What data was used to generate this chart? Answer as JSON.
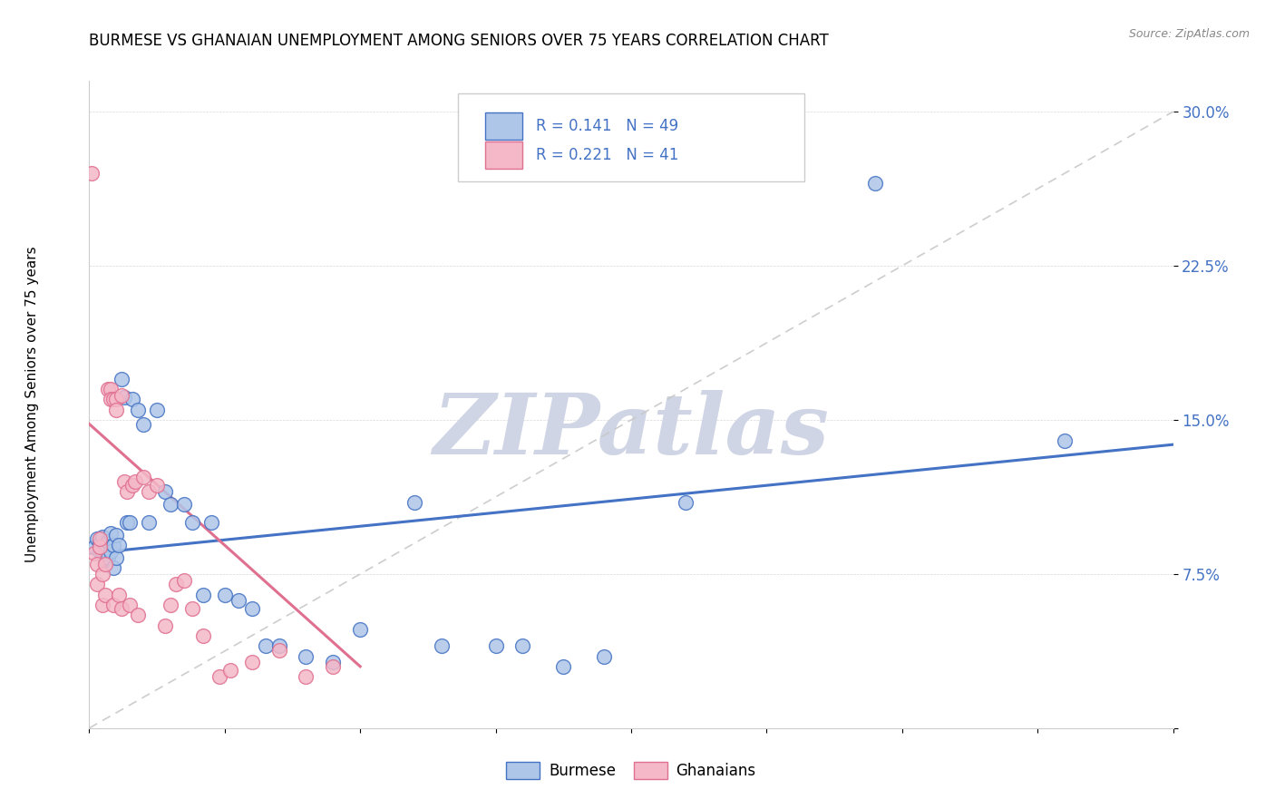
{
  "title": "BURMESE VS GHANAIAN UNEMPLOYMENT AMONG SENIORS OVER 75 YEARS CORRELATION CHART",
  "source": "Source: ZipAtlas.com",
  "ylabel": "Unemployment Among Seniors over 75 years",
  "burmese_color": "#aec6e8",
  "ghanaian_color": "#f4b8c8",
  "burmese_line_color": "#4472c4",
  "ghanaian_line_color": "#e07090",
  "ref_line_color": "#c8c8c8",
  "watermark_color": "#d0d5e5",
  "watermark_text": "ZIPatlas",
  "legend_r1": "R = 0.141",
  "legend_n1": "N = 49",
  "legend_r2": "R = 0.221",
  "legend_n2": "N = 41",
  "burmese_x": [
    0.002,
    0.003,
    0.004,
    0.004,
    0.005,
    0.005,
    0.006,
    0.006,
    0.007,
    0.007,
    0.008,
    0.008,
    0.009,
    0.009,
    0.01,
    0.01,
    0.011,
    0.012,
    0.013,
    0.014,
    0.015,
    0.016,
    0.018,
    0.02,
    0.022,
    0.025,
    0.028,
    0.03,
    0.035,
    0.038,
    0.042,
    0.045,
    0.05,
    0.055,
    0.06,
    0.065,
    0.07,
    0.08,
    0.09,
    0.1,
    0.12,
    0.13,
    0.15,
    0.16,
    0.175,
    0.19,
    0.22,
    0.29,
    0.36
  ],
  "burmese_y": [
    0.088,
    0.092,
    0.086,
    0.09,
    0.085,
    0.093,
    0.087,
    0.082,
    0.091,
    0.083,
    0.095,
    0.086,
    0.089,
    0.078,
    0.094,
    0.083,
    0.089,
    0.17,
    0.161,
    0.1,
    0.1,
    0.16,
    0.155,
    0.148,
    0.1,
    0.155,
    0.115,
    0.109,
    0.109,
    0.1,
    0.065,
    0.1,
    0.065,
    0.062,
    0.058,
    0.04,
    0.04,
    0.035,
    0.032,
    0.048,
    0.11,
    0.04,
    0.04,
    0.04,
    0.03,
    0.035,
    0.11,
    0.265,
    0.14
  ],
  "ghanaian_x": [
    0.001,
    0.002,
    0.003,
    0.003,
    0.004,
    0.004,
    0.005,
    0.005,
    0.006,
    0.006,
    0.007,
    0.008,
    0.008,
    0.009,
    0.009,
    0.01,
    0.01,
    0.011,
    0.012,
    0.012,
    0.013,
    0.014,
    0.015,
    0.016,
    0.017,
    0.018,
    0.02,
    0.022,
    0.025,
    0.028,
    0.03,
    0.032,
    0.035,
    0.038,
    0.042,
    0.048,
    0.052,
    0.06,
    0.07,
    0.08,
    0.09
  ],
  "ghanaian_y": [
    0.27,
    0.085,
    0.08,
    0.07,
    0.088,
    0.092,
    0.075,
    0.06,
    0.065,
    0.08,
    0.165,
    0.165,
    0.16,
    0.16,
    0.06,
    0.16,
    0.155,
    0.065,
    0.162,
    0.058,
    0.12,
    0.115,
    0.06,
    0.118,
    0.12,
    0.055,
    0.122,
    0.115,
    0.118,
    0.05,
    0.06,
    0.07,
    0.072,
    0.058,
    0.045,
    0.025,
    0.028,
    0.032,
    0.038,
    0.025,
    0.03
  ],
  "burmese_trend_x": [
    0.0,
    0.4
  ],
  "burmese_trend_y": [
    0.085,
    0.138
  ],
  "ghanaian_trend_x": [
    0.0,
    0.1
  ],
  "ghanaian_trend_y": [
    0.148,
    0.03
  ],
  "ref_line_x": [
    0.0,
    0.4
  ],
  "ref_line_y": [
    0.0,
    0.3
  ],
  "xlim": [
    0.0,
    0.4
  ],
  "ylim": [
    0.0,
    0.315
  ],
  "yticks": [
    0.0,
    0.075,
    0.15,
    0.225,
    0.3
  ],
  "ytick_labels": [
    "",
    "7.5%",
    "15.0%",
    "22.5%",
    "30.0%"
  ]
}
